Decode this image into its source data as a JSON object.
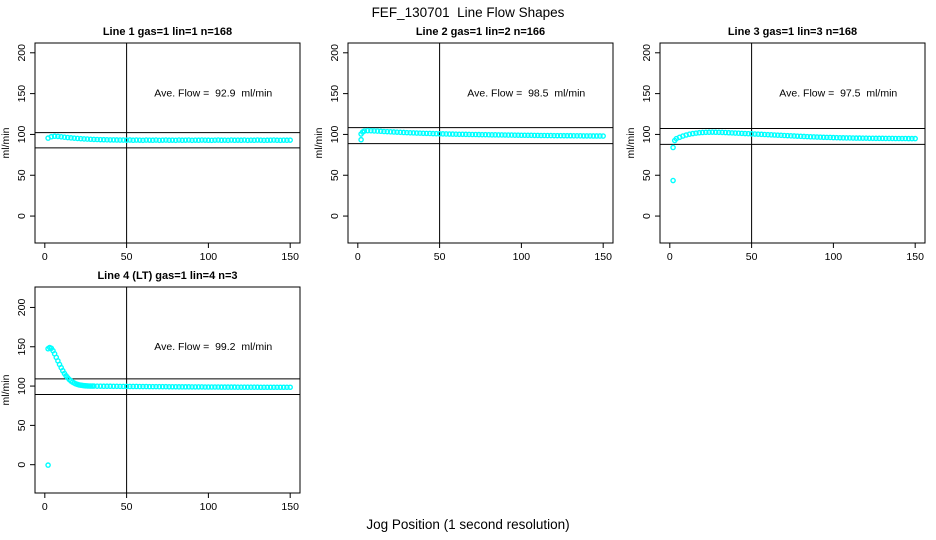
{
  "figure": {
    "title": "FEF_130701  Line Flow Shapes",
    "xlabel": "Jog Position (1 second resolution)",
    "background": "#ffffff",
    "point_color": "#00ffff",
    "line_color": "#000000"
  },
  "chart_data": [
    {
      "type": "scatter",
      "title": "Line 1 gas=1 lin=1 n=168",
      "ylabel": "ml/min",
      "annotation": "Ave. Flow =  92.9  ml/min",
      "ave_flow_ml_min": 92.9,
      "n": 168,
      "x_ticks": [
        0,
        50,
        100,
        150
      ],
      "y_ticks": [
        0,
        50,
        100,
        150,
        200
      ],
      "xlim": [
        -6,
        156
      ],
      "ylim": [
        -33,
        212
      ],
      "vline_x": 50,
      "hlines_y": [
        102.2,
        83.6
      ],
      "grid": false,
      "points": [
        [
          2,
          95.5
        ],
        [
          4,
          97.2
        ],
        [
          6,
          97.8
        ],
        [
          8,
          97.6
        ],
        [
          10,
          97.1
        ],
        [
          12,
          96.6
        ],
        [
          14,
          96.2
        ],
        [
          16,
          95.8
        ],
        [
          18,
          95.4
        ],
        [
          20,
          95.1
        ],
        [
          22,
          94.8
        ],
        [
          24,
          94.5
        ],
        [
          26,
          94.3
        ],
        [
          28,
          94.1
        ],
        [
          30,
          93.9
        ],
        [
          32,
          93.8
        ],
        [
          34,
          93.6
        ],
        [
          36,
          93.5
        ],
        [
          38,
          93.4
        ],
        [
          40,
          93.3
        ],
        [
          42,
          93.3
        ],
        [
          44,
          93.2
        ],
        [
          46,
          93.1
        ],
        [
          48,
          93.1
        ],
        [
          50,
          93.0
        ],
        [
          52,
          93.2
        ],
        [
          54,
          92.9
        ],
        [
          56,
          93.1
        ],
        [
          58,
          93.0
        ],
        [
          60,
          92.8
        ],
        [
          62,
          93.1
        ],
        [
          64,
          93.0
        ],
        [
          66,
          92.9
        ],
        [
          68,
          93.1
        ],
        [
          70,
          92.8
        ],
        [
          72,
          93.0
        ],
        [
          74,
          93.1
        ],
        [
          76,
          92.9
        ],
        [
          78,
          93.0
        ],
        [
          80,
          92.8
        ],
        [
          82,
          93.1
        ],
        [
          84,
          92.9
        ],
        [
          86,
          93.0
        ],
        [
          88,
          93.1
        ],
        [
          90,
          92.8
        ],
        [
          92,
          93.0
        ],
        [
          94,
          92.9
        ],
        [
          96,
          93.1
        ],
        [
          98,
          93.0
        ],
        [
          100,
          92.9
        ],
        [
          102,
          92.8
        ],
        [
          104,
          93.0
        ],
        [
          106,
          93.1
        ],
        [
          108,
          92.9
        ],
        [
          110,
          93.0
        ],
        [
          112,
          92.8
        ],
        [
          114,
          93.1
        ],
        [
          116,
          92.9
        ],
        [
          118,
          93.0
        ],
        [
          120,
          92.9
        ],
        [
          122,
          93.1
        ],
        [
          124,
          92.8
        ],
        [
          126,
          93.0
        ],
        [
          128,
          92.9
        ],
        [
          130,
          93.1
        ],
        [
          132,
          93.0
        ],
        [
          134,
          92.8
        ],
        [
          136,
          92.9
        ],
        [
          138,
          93.0
        ],
        [
          140,
          93.1
        ],
        [
          142,
          92.9
        ],
        [
          144,
          92.8
        ],
        [
          146,
          93.0
        ],
        [
          148,
          92.9
        ],
        [
          150,
          93.0
        ]
      ]
    },
    {
      "type": "scatter",
      "title": "Line 2 gas=1 lin=2 n=166",
      "ylabel": "ml/min",
      "annotation": "Ave. Flow =  98.5  ml/min",
      "ave_flow_ml_min": 98.5,
      "n": 166,
      "x_ticks": [
        0,
        50,
        100,
        150
      ],
      "y_ticks": [
        0,
        50,
        100,
        150,
        200
      ],
      "xlim": [
        -6,
        156
      ],
      "ylim": [
        -33,
        212
      ],
      "vline_x": 50,
      "hlines_y": [
        108.4,
        88.7
      ],
      "grid": false,
      "points": [
        [
          2,
          93.5
        ],
        [
          2,
          100.5
        ],
        [
          3,
          103.0
        ],
        [
          4,
          104.2
        ],
        [
          6,
          104.6
        ],
        [
          8,
          104.5
        ],
        [
          10,
          104.3
        ],
        [
          12,
          104.1
        ],
        [
          14,
          103.9
        ],
        [
          16,
          103.6
        ],
        [
          18,
          103.4
        ],
        [
          20,
          103.2
        ],
        [
          22,
          103.0
        ],
        [
          24,
          102.8
        ],
        [
          26,
          102.6
        ],
        [
          28,
          102.4
        ],
        [
          30,
          102.2
        ],
        [
          32,
          102.0
        ],
        [
          34,
          101.9
        ],
        [
          36,
          101.7
        ],
        [
          38,
          101.6
        ],
        [
          40,
          101.4
        ],
        [
          42,
          101.3
        ],
        [
          44,
          101.2
        ],
        [
          46,
          101.0
        ],
        [
          48,
          100.9
        ],
        [
          50,
          100.8
        ],
        [
          52,
          100.7
        ],
        [
          54,
          100.6
        ],
        [
          56,
          100.5
        ],
        [
          58,
          100.4
        ],
        [
          60,
          100.3
        ],
        [
          62,
          100.2
        ],
        [
          64,
          100.2
        ],
        [
          66,
          100.1
        ],
        [
          68,
          100.0
        ],
        [
          70,
          99.9
        ],
        [
          72,
          99.9
        ],
        [
          74,
          99.8
        ],
        [
          76,
          99.7
        ],
        [
          78,
          99.7
        ],
        [
          80,
          99.6
        ],
        [
          82,
          99.5
        ],
        [
          84,
          99.5
        ],
        [
          86,
          99.4
        ],
        [
          88,
          99.4
        ],
        [
          90,
          99.3
        ],
        [
          92,
          99.2
        ],
        [
          94,
          99.2
        ],
        [
          96,
          99.1
        ],
        [
          98,
          99.1
        ],
        [
          100,
          99.0
        ],
        [
          102,
          99.0
        ],
        [
          104,
          98.9
        ],
        [
          106,
          98.9
        ],
        [
          108,
          98.8
        ],
        [
          110,
          98.8
        ],
        [
          112,
          98.7
        ],
        [
          114,
          98.7
        ],
        [
          116,
          98.6
        ],
        [
          118,
          98.6
        ],
        [
          120,
          98.5
        ],
        [
          122,
          98.5
        ],
        [
          124,
          98.5
        ],
        [
          126,
          98.4
        ],
        [
          128,
          98.4
        ],
        [
          130,
          98.4
        ],
        [
          132,
          98.3
        ],
        [
          134,
          98.3
        ],
        [
          136,
          98.3
        ],
        [
          138,
          98.2
        ],
        [
          140,
          98.2
        ],
        [
          142,
          98.2
        ],
        [
          144,
          98.1
        ],
        [
          146,
          98.1
        ],
        [
          148,
          98.1
        ],
        [
          150,
          98.0
        ]
      ]
    },
    {
      "type": "scatter",
      "title": "Line 3 gas=1 lin=3 n=168",
      "ylabel": "ml/min",
      "annotation": "Ave. Flow =  97.5  ml/min",
      "ave_flow_ml_min": 97.5,
      "n": 168,
      "x_ticks": [
        0,
        50,
        100,
        150
      ],
      "y_ticks": [
        0,
        50,
        100,
        150,
        200
      ],
      "xlim": [
        -6,
        156
      ],
      "ylim": [
        -33,
        212
      ],
      "vline_x": 50,
      "hlines_y": [
        107.3,
        87.8
      ],
      "grid": false,
      "points": [
        [
          2,
          43.5
        ],
        [
          2,
          84.0
        ],
        [
          3,
          92.5
        ],
        [
          4,
          94.8
        ],
        [
          6,
          96.5
        ],
        [
          8,
          98.0
        ],
        [
          10,
          99.3
        ],
        [
          12,
          100.3
        ],
        [
          14,
          101.0
        ],
        [
          16,
          101.6
        ],
        [
          18,
          102.1
        ],
        [
          20,
          102.4
        ],
        [
          22,
          102.6
        ],
        [
          24,
          102.7
        ],
        [
          26,
          102.8
        ],
        [
          28,
          102.7
        ],
        [
          30,
          102.6
        ],
        [
          32,
          102.5
        ],
        [
          34,
          102.3
        ],
        [
          36,
          102.1
        ],
        [
          38,
          101.9
        ],
        [
          40,
          101.7
        ],
        [
          42,
          101.5
        ],
        [
          44,
          101.3
        ],
        [
          46,
          101.1
        ],
        [
          48,
          100.9
        ],
        [
          50,
          100.7
        ],
        [
          52,
          100.5
        ],
        [
          54,
          100.3
        ],
        [
          56,
          100.1
        ],
        [
          58,
          99.9
        ],
        [
          60,
          99.7
        ],
        [
          62,
          99.5
        ],
        [
          64,
          99.3
        ],
        [
          66,
          99.1
        ],
        [
          68,
          98.9
        ],
        [
          70,
          98.7
        ],
        [
          72,
          98.5
        ],
        [
          74,
          98.3
        ],
        [
          76,
          98.1
        ],
        [
          78,
          97.9
        ],
        [
          80,
          97.7
        ],
        [
          82,
          97.5
        ],
        [
          84,
          97.3
        ],
        [
          86,
          97.1
        ],
        [
          88,
          97.0
        ],
        [
          90,
          96.8
        ],
        [
          92,
          96.7
        ],
        [
          94,
          96.5
        ],
        [
          96,
          96.4
        ],
        [
          98,
          96.3
        ],
        [
          100,
          96.1
        ],
        [
          102,
          96.0
        ],
        [
          104,
          95.9
        ],
        [
          106,
          95.8
        ],
        [
          108,
          95.7
        ],
        [
          110,
          95.7
        ],
        [
          112,
          95.6
        ],
        [
          114,
          95.5
        ],
        [
          116,
          95.5
        ],
        [
          118,
          95.4
        ],
        [
          120,
          95.4
        ],
        [
          122,
          95.3
        ],
        [
          124,
          95.3
        ],
        [
          126,
          95.2
        ],
        [
          128,
          95.2
        ],
        [
          130,
          95.2
        ],
        [
          132,
          95.1
        ],
        [
          134,
          95.1
        ],
        [
          136,
          95.1
        ],
        [
          138,
          95.0
        ],
        [
          140,
          95.0
        ],
        [
          142,
          95.0
        ],
        [
          144,
          95.0
        ],
        [
          146,
          94.9
        ],
        [
          148,
          94.9
        ],
        [
          150,
          94.9
        ]
      ]
    },
    {
      "type": "scatter",
      "title": "Line 4 (LT) gas=1 lin=4 n=3",
      "ylabel": "ml/min",
      "annotation": "Ave. Flow =  99.2  ml/min",
      "ave_flow_ml_min": 99.2,
      "n": 3,
      "x_ticks": [
        0,
        50,
        100,
        150
      ],
      "y_ticks": [
        0,
        50,
        100,
        150,
        200
      ],
      "xlim": [
        -6,
        156
      ],
      "ylim": [
        -36,
        226
      ],
      "vline_x": 50,
      "hlines_y": [
        109.1,
        89.3
      ],
      "grid": false,
      "points": [
        [
          2,
          -0.5
        ],
        [
          2,
          147.5
        ],
        [
          3,
          149.0
        ],
        [
          4,
          148.0
        ],
        [
          5,
          145.0
        ],
        [
          6,
          141.0
        ],
        [
          7,
          136.5
        ],
        [
          8,
          132.0
        ],
        [
          9,
          127.5
        ],
        [
          10,
          123.5
        ],
        [
          11,
          119.5
        ],
        [
          12,
          116.0
        ],
        [
          13,
          113.0
        ],
        [
          14,
          110.5
        ],
        [
          15,
          108.3
        ],
        [
          16,
          106.5
        ],
        [
          17,
          105.0
        ],
        [
          18,
          103.8
        ],
        [
          19,
          102.8
        ],
        [
          20,
          102.1
        ],
        [
          21,
          101.5
        ],
        [
          22,
          101.1
        ],
        [
          23,
          100.8
        ],
        [
          24,
          100.5
        ],
        [
          25,
          100.3
        ],
        [
          26,
          100.2
        ],
        [
          27,
          100.1
        ],
        [
          28,
          100.0
        ],
        [
          29,
          100.0
        ],
        [
          30,
          100.0
        ],
        [
          32,
          99.9
        ],
        [
          34,
          99.9
        ],
        [
          36,
          99.8
        ],
        [
          38,
          99.8
        ],
        [
          40,
          99.8
        ],
        [
          42,
          99.7
        ],
        [
          44,
          99.7
        ],
        [
          46,
          99.6
        ],
        [
          48,
          99.6
        ],
        [
          50,
          99.6
        ],
        [
          52,
          99.5
        ],
        [
          54,
          99.5
        ],
        [
          56,
          99.5
        ],
        [
          58,
          99.4
        ],
        [
          60,
          99.4
        ],
        [
          62,
          99.4
        ],
        [
          64,
          99.3
        ],
        [
          66,
          99.3
        ],
        [
          68,
          99.3
        ],
        [
          70,
          99.2
        ],
        [
          72,
          99.2
        ],
        [
          74,
          99.2
        ],
        [
          76,
          99.1
        ],
        [
          78,
          99.1
        ],
        [
          80,
          99.1
        ],
        [
          82,
          99.0
        ],
        [
          84,
          99.0
        ],
        [
          86,
          99.0
        ],
        [
          88,
          99.0
        ],
        [
          90,
          98.9
        ],
        [
          92,
          98.9
        ],
        [
          94,
          98.9
        ],
        [
          96,
          98.9
        ],
        [
          98,
          98.8
        ],
        [
          100,
          98.8
        ],
        [
          102,
          98.8
        ],
        [
          104,
          98.8
        ],
        [
          106,
          98.8
        ],
        [
          108,
          98.7
        ],
        [
          110,
          98.7
        ],
        [
          112,
          98.7
        ],
        [
          114,
          98.7
        ],
        [
          116,
          98.7
        ],
        [
          118,
          98.6
        ],
        [
          120,
          98.6
        ],
        [
          122,
          98.6
        ],
        [
          124,
          98.6
        ],
        [
          126,
          98.6
        ],
        [
          128,
          98.6
        ],
        [
          130,
          98.6
        ],
        [
          132,
          98.5
        ],
        [
          134,
          98.5
        ],
        [
          136,
          98.5
        ],
        [
          138,
          98.5
        ],
        [
          140,
          98.5
        ],
        [
          142,
          98.5
        ],
        [
          144,
          98.5
        ],
        [
          146,
          98.5
        ],
        [
          148,
          98.5
        ],
        [
          150,
          98.5
        ]
      ]
    }
  ]
}
